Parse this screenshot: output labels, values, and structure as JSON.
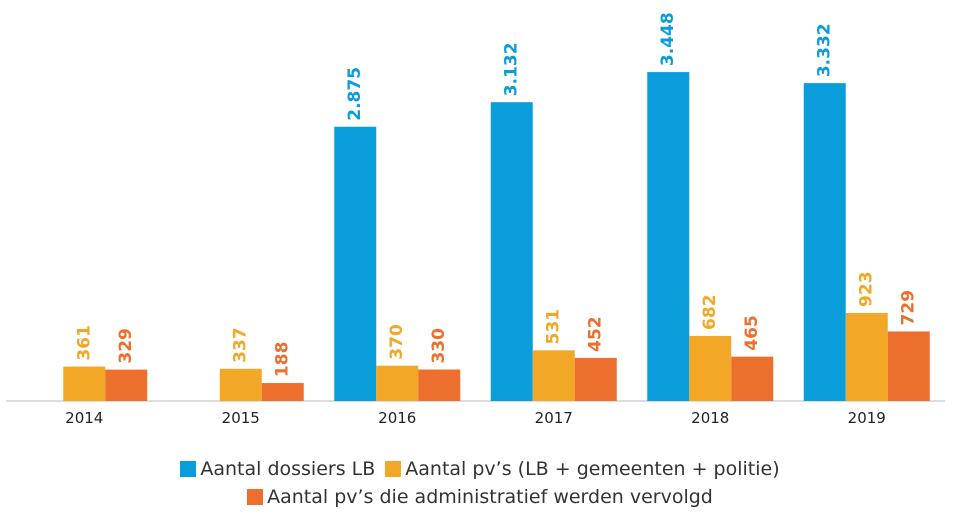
{
  "chart_data": {
    "type": "bar",
    "categories": [
      "2014",
      "2015",
      "2016",
      "2017",
      "2018",
      "2019"
    ],
    "series": [
      {
        "name": "Aantal dossiers LB",
        "color": "#0a9ddb",
        "values": [
          null,
          null,
          2875,
          3132,
          3448,
          3332
        ],
        "value_labels": [
          null,
          null,
          "2.875",
          "3.132",
          "3.448",
          "3.332"
        ]
      },
      {
        "name": "Aantal pv’s (LB + gemeenten + politie)",
        "color": "#f2a726",
        "values": [
          361,
          337,
          370,
          531,
          682,
          923
        ]
      },
      {
        "name": "Aantal pv’s die administratief werden vervolgd",
        "color": "#ec6f2d",
        "values": [
          329,
          188,
          330,
          452,
          465,
          729
        ]
      }
    ],
    "ylim": [
      0,
      3800
    ]
  }
}
